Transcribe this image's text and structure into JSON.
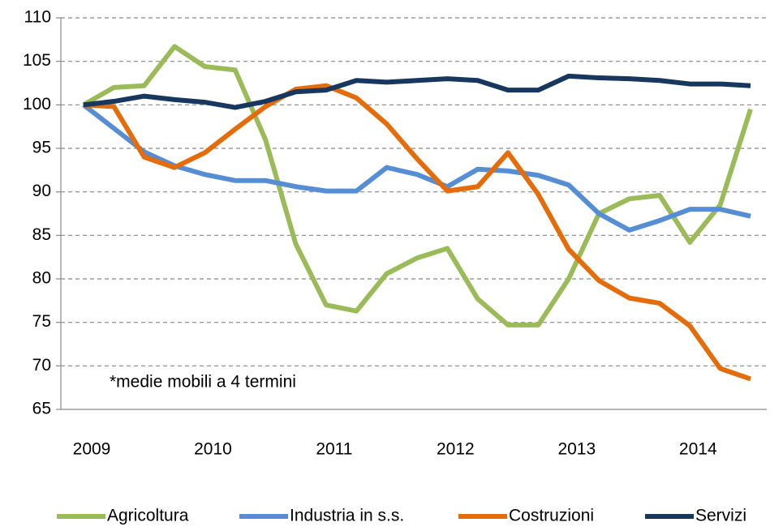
{
  "chart_data": {
    "type": "line",
    "categories": [
      "2009",
      null,
      null,
      null,
      "2010",
      null,
      null,
      null,
      "2011",
      null,
      null,
      null,
      "2012",
      null,
      null,
      null,
      "2013",
      null,
      null,
      null,
      "2014",
      null,
      null
    ],
    "series": [
      {
        "name": "Agricoltura",
        "color": "#9bbb59",
        "values": [
          100,
          102,
          102.2,
          106.7,
          104.4,
          104,
          96,
          84,
          77,
          76.3,
          80.6,
          82.4,
          83.5,
          77.7,
          74.7,
          74.7,
          80,
          87.5,
          89.2,
          89.6,
          84.2,
          88.5,
          99.5
        ]
      },
      {
        "name": "Industria in s.s.",
        "color": "#558ed5",
        "values": [
          100,
          97.3,
          94.6,
          93,
          92,
          91.3,
          91.3,
          90.6,
          90.1,
          90.1,
          92.8,
          92,
          90.6,
          92.6,
          92.4,
          91.9,
          90.8,
          87.5,
          85.6,
          86.7,
          88,
          88,
          87.2
        ]
      },
      {
        "name": "Costruzioni",
        "color": "#e46c0a",
        "values": [
          100,
          99.8,
          94,
          92.8,
          94.5,
          97.2,
          99.8,
          101.8,
          102.2,
          100.8,
          97.8,
          93.8,
          90.1,
          90.6,
          94.5,
          89.7,
          83.4,
          79.8,
          77.8,
          77.2,
          74.6,
          69.7,
          68.5
        ]
      },
      {
        "name": "Servizi",
        "color": "#17375e",
        "values": [
          100,
          100.4,
          101,
          100.6,
          100.3,
          99.7,
          100.4,
          101.5,
          101.7,
          102.8,
          102.6,
          102.8,
          103,
          102.8,
          101.7,
          101.7,
          103.3,
          103.1,
          103,
          102.8,
          102.4,
          102.4,
          102.2
        ]
      }
    ],
    "annotation": "*medie mobili a 4 termini",
    "ylim": [
      65,
      110
    ],
    "yticks": [
      65,
      70,
      75,
      80,
      85,
      90,
      95,
      100,
      105,
      110
    ],
    "grid": true
  }
}
